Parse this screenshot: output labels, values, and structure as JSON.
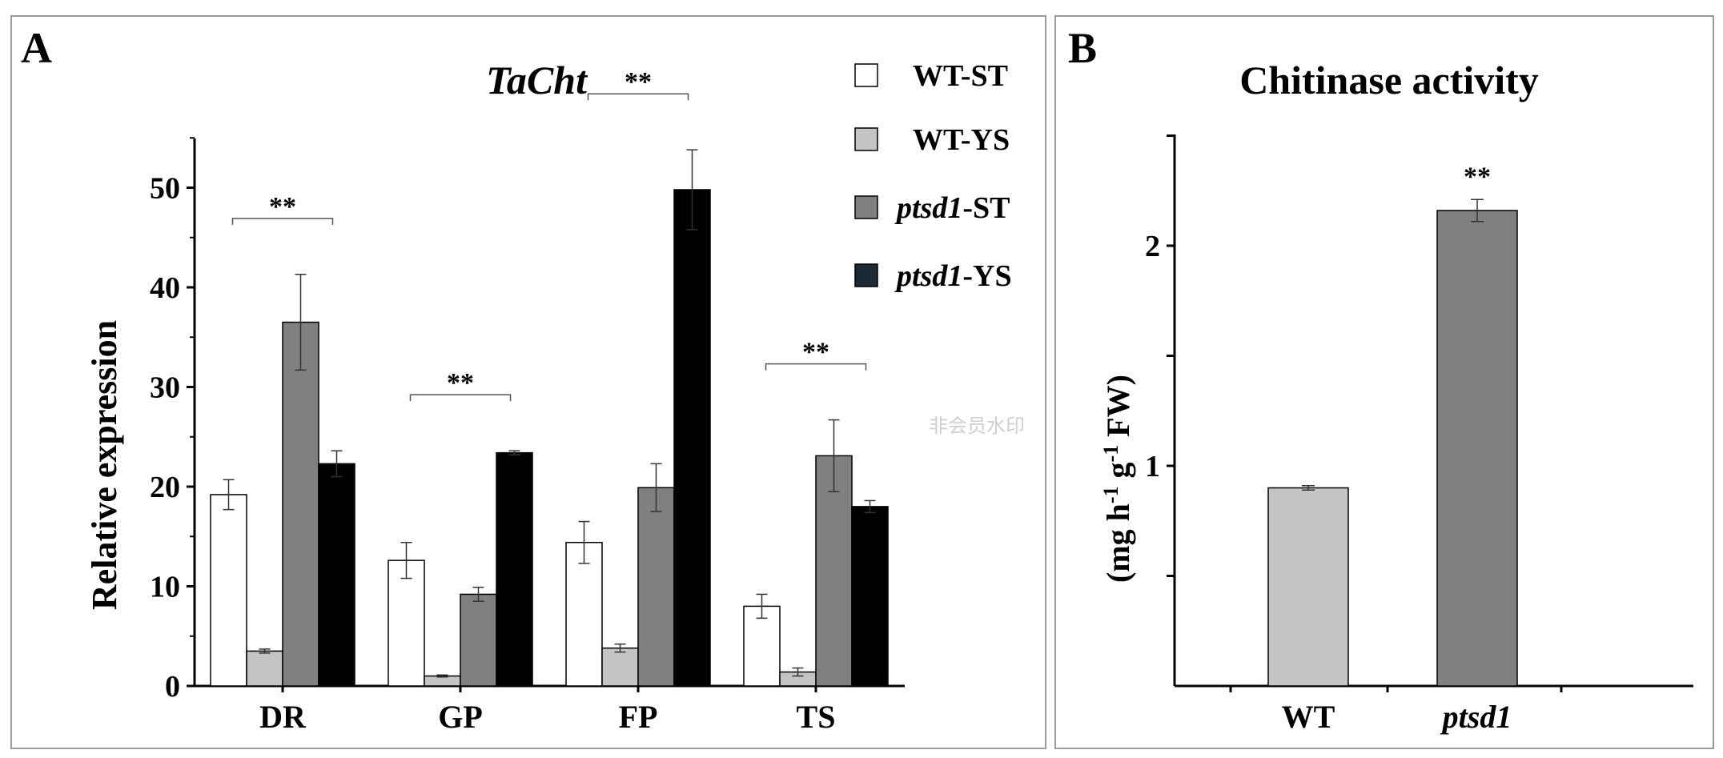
{
  "watermark": "非会员水印",
  "chart_data": [
    {
      "panel_label": "A",
      "type": "bar",
      "title": "TaCht",
      "xlabel": "",
      "ylabel": "Relative expression",
      "ylim": [
        0,
        55
      ],
      "yticks": [
        0,
        10,
        20,
        30,
        40,
        50
      ],
      "categories": [
        "DR",
        "GP",
        "FP",
        "TS"
      ],
      "legend_position": "top-right",
      "series": [
        {
          "name": "WT-ST",
          "italic_part": "",
          "plain_part": "WT-ST",
          "color": "#ffffff",
          "values": [
            19.2,
            12.6,
            14.4,
            8.0
          ],
          "errors": [
            1.5,
            1.8,
            2.1,
            1.2
          ]
        },
        {
          "name": "WT-YS",
          "italic_part": "",
          "plain_part": "WT-YS",
          "color": "#c4c4c4",
          "values": [
            3.5,
            1.0,
            3.8,
            1.4
          ],
          "errors": [
            0.2,
            0.1,
            0.4,
            0.4
          ]
        },
        {
          "name": "ptsd1-ST",
          "italic_part": "ptsd1",
          "plain_part": "-ST",
          "color": "#808080",
          "values": [
            36.5,
            9.2,
            19.9,
            23.1
          ],
          "errors": [
            4.8,
            0.7,
            2.4,
            3.6
          ]
        },
        {
          "name": "ptsd1-YS",
          "italic_part": "ptsd1",
          "plain_part": "-YS",
          "color": "#000000",
          "legend_color": "#1e2a33",
          "values": [
            22.3,
            23.4,
            49.8,
            18.0
          ],
          "errors": [
            1.3,
            0.2,
            4.0,
            0.6
          ]
        }
      ],
      "annotations": [
        {
          "category": "DR",
          "text": "**"
        },
        {
          "category": "GP",
          "text": "**"
        },
        {
          "category": "FP",
          "text": "**"
        },
        {
          "category": "TS",
          "text": "**"
        }
      ]
    },
    {
      "panel_label": "B",
      "type": "bar",
      "title": "Chitinase activity",
      "xlabel": "",
      "ylabel": "(mg h-1 g-1 FW)",
      "ylim": [
        0,
        2.5
      ],
      "yticks": [
        1,
        2
      ],
      "yticks_unlabeled": [
        0.5,
        1.5,
        2.5
      ],
      "categories": [
        "WT",
        "ptsd1"
      ],
      "values": [
        0.9,
        2.16
      ],
      "errors": [
        0.01,
        0.05
      ],
      "colors": [
        "#c4c4c4",
        "#808080"
      ],
      "annotations": [
        {
          "category": "ptsd1",
          "text": "**"
        }
      ]
    }
  ]
}
